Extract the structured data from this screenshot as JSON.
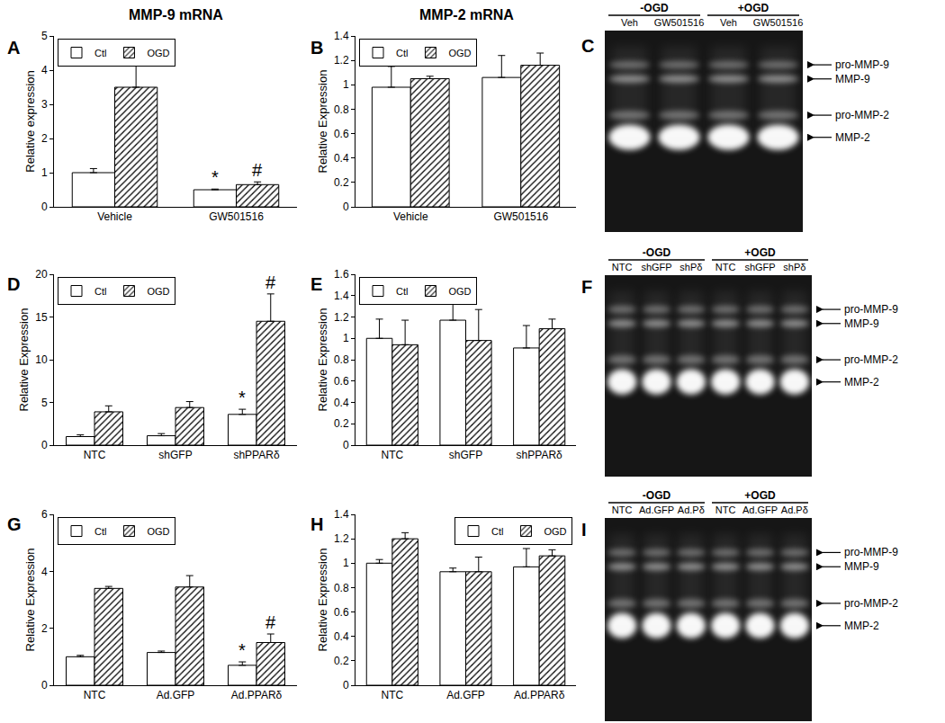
{
  "column_titles": [
    "MMP-9 mRNA",
    "MMP-2 mRNA"
  ],
  "chart_data": [
    {
      "type": "bar",
      "title": "A",
      "ylabel": "Relative expression",
      "categories": [
        "Vehicle",
        "GW501516"
      ],
      "series": [
        {
          "name": "Ctl",
          "color": "#ffffff",
          "marker": "plain",
          "values": [
            1.0,
            0.5
          ],
          "errors": [
            0.12,
            0.02
          ]
        },
        {
          "name": "OGD",
          "color": "#ffffff",
          "marker": "hatched",
          "values": [
            3.5,
            0.65
          ],
          "errors": [
            0.75,
            0.08
          ]
        }
      ],
      "ylim": [
        0,
        5
      ],
      "yticks": [
        0,
        1,
        2,
        3,
        4,
        5
      ],
      "grid": false,
      "legend": "upper left",
      "annotations": [
        {
          "category": "GW501516",
          "series": "Ctl",
          "text": "*"
        },
        {
          "category": "GW501516",
          "series": "OGD",
          "text": "#"
        }
      ]
    },
    {
      "type": "bar",
      "title": "B",
      "ylabel": "Relative Expression",
      "categories": [
        "Vehicle",
        "GW501516"
      ],
      "series": [
        {
          "name": "Ctl",
          "color": "#ffffff",
          "marker": "plain",
          "values": [
            0.98,
            1.06
          ],
          "errors": [
            0.17,
            0.18
          ]
        },
        {
          "name": "OGD",
          "color": "#ffffff",
          "marker": "hatched",
          "values": [
            1.05,
            1.16
          ],
          "errors": [
            0.02,
            0.1
          ]
        }
      ],
      "ylim": [
        0,
        1.4
      ],
      "yticks": [
        0,
        0.2,
        0.4,
        0.6,
        0.8,
        1,
        1.2,
        1.4
      ],
      "grid": false,
      "legend": "upper left"
    },
    {
      "type": "bar",
      "title": "D",
      "ylabel": "Relative Expression",
      "categories": [
        "NTC",
        "shGFP",
        "shPPARδ"
      ],
      "series": [
        {
          "name": "Ctl",
          "color": "#ffffff",
          "marker": "plain",
          "values": [
            1.0,
            1.1,
            3.6
          ],
          "errors": [
            0.2,
            0.25,
            0.6
          ]
        },
        {
          "name": "OGD",
          "color": "#ffffff",
          "marker": "hatched",
          "values": [
            3.9,
            4.4,
            14.5
          ],
          "errors": [
            0.7,
            0.7,
            3.2
          ]
        }
      ],
      "ylim": [
        0,
        20
      ],
      "yticks": [
        0,
        5,
        10,
        15,
        20
      ],
      "grid": false,
      "legend": "upper left",
      "annotations": [
        {
          "category": "shPPARδ",
          "series": "Ctl",
          "text": "*"
        },
        {
          "category": "shPPARδ",
          "series": "OGD",
          "text": "#"
        }
      ]
    },
    {
      "type": "bar",
      "title": "E",
      "ylabel": "Relative Expression",
      "categories": [
        "NTC",
        "shGFP",
        "shPPARδ"
      ],
      "series": [
        {
          "name": "Ctl",
          "color": "#ffffff",
          "marker": "plain",
          "values": [
            1.0,
            1.17,
            0.91
          ],
          "errors": [
            0.18,
            0.18,
            0.21
          ]
        },
        {
          "name": "OGD",
          "color": "#ffffff",
          "marker": "hatched",
          "values": [
            0.94,
            0.98,
            1.09
          ],
          "errors": [
            0.23,
            0.29,
            0.09
          ]
        }
      ],
      "ylim": [
        0,
        1.6
      ],
      "yticks": [
        0,
        0.2,
        0.4,
        0.6,
        0.8,
        1,
        1.2,
        1.4,
        1.6
      ],
      "grid": false,
      "legend": "upper left"
    },
    {
      "type": "bar",
      "title": "G",
      "ylabel": "Relative Expression",
      "categories": [
        "NTC",
        "Ad.GFP",
        "Ad.PPARδ"
      ],
      "series": [
        {
          "name": "Ctl",
          "color": "#ffffff",
          "marker": "plain",
          "values": [
            1.0,
            1.15,
            0.7
          ],
          "errors": [
            0.05,
            0.05,
            0.12
          ]
        },
        {
          "name": "OGD",
          "color": "#ffffff",
          "marker": "hatched",
          "values": [
            3.4,
            3.45,
            1.5
          ],
          "errors": [
            0.07,
            0.4,
            0.3
          ]
        }
      ],
      "ylim": [
        0,
        6
      ],
      "yticks": [
        0,
        2,
        4,
        6
      ],
      "grid": false,
      "legend": "upper left",
      "annotations": [
        {
          "category": "Ad.PPARδ",
          "series": "Ctl",
          "text": "*"
        },
        {
          "category": "Ad.PPARδ",
          "series": "OGD",
          "text": "#"
        }
      ]
    },
    {
      "type": "bar",
      "title": "H",
      "ylabel": "Relative Expression",
      "categories": [
        "NTC",
        "Ad.GFP",
        "Ad.PPARδ"
      ],
      "series": [
        {
          "name": "Ctl",
          "color": "#ffffff",
          "marker": "plain",
          "values": [
            1.0,
            0.93,
            0.97
          ],
          "errors": [
            0.03,
            0.03,
            0.15
          ]
        },
        {
          "name": "OGD",
          "color": "#ffffff",
          "marker": "hatched",
          "values": [
            1.2,
            0.93,
            1.06
          ],
          "errors": [
            0.05,
            0.12,
            0.05
          ]
        }
      ],
      "ylim": [
        0,
        1.4
      ],
      "yticks": [
        0,
        0.2,
        0.4,
        0.6,
        0.8,
        1,
        1.2,
        1.4
      ],
      "grid": false,
      "legend": "upper right"
    }
  ],
  "gels": [
    {
      "title": "C",
      "groups": [
        "-OGD",
        "+OGD"
      ],
      "lanes": [
        "Veh",
        "GW501516",
        "Veh",
        "GW501516"
      ],
      "bands": [
        "pro-MMP-9",
        "MMP-9",
        "pro-MMP-2",
        "MMP-2"
      ]
    },
    {
      "title": "F",
      "groups": [
        "-OGD",
        "+OGD"
      ],
      "lanes": [
        "NTC",
        "shGFP",
        "shPδ",
        "NTC",
        "shGFP",
        "shPδ"
      ],
      "bands": [
        "pro-MMP-9",
        "MMP-9",
        "pro-MMP-2",
        "MMP-2"
      ]
    },
    {
      "title": "I",
      "groups": [
        "-OGD",
        "+OGD"
      ],
      "lanes": [
        "NTC",
        "Ad.GFP",
        "Ad.Pδ",
        "NTC",
        "Ad.GFP",
        "Ad.Pδ"
      ],
      "bands": [
        "pro-MMP-9",
        "MMP-9",
        "pro-MMP-2",
        "MMP-2"
      ]
    }
  ]
}
